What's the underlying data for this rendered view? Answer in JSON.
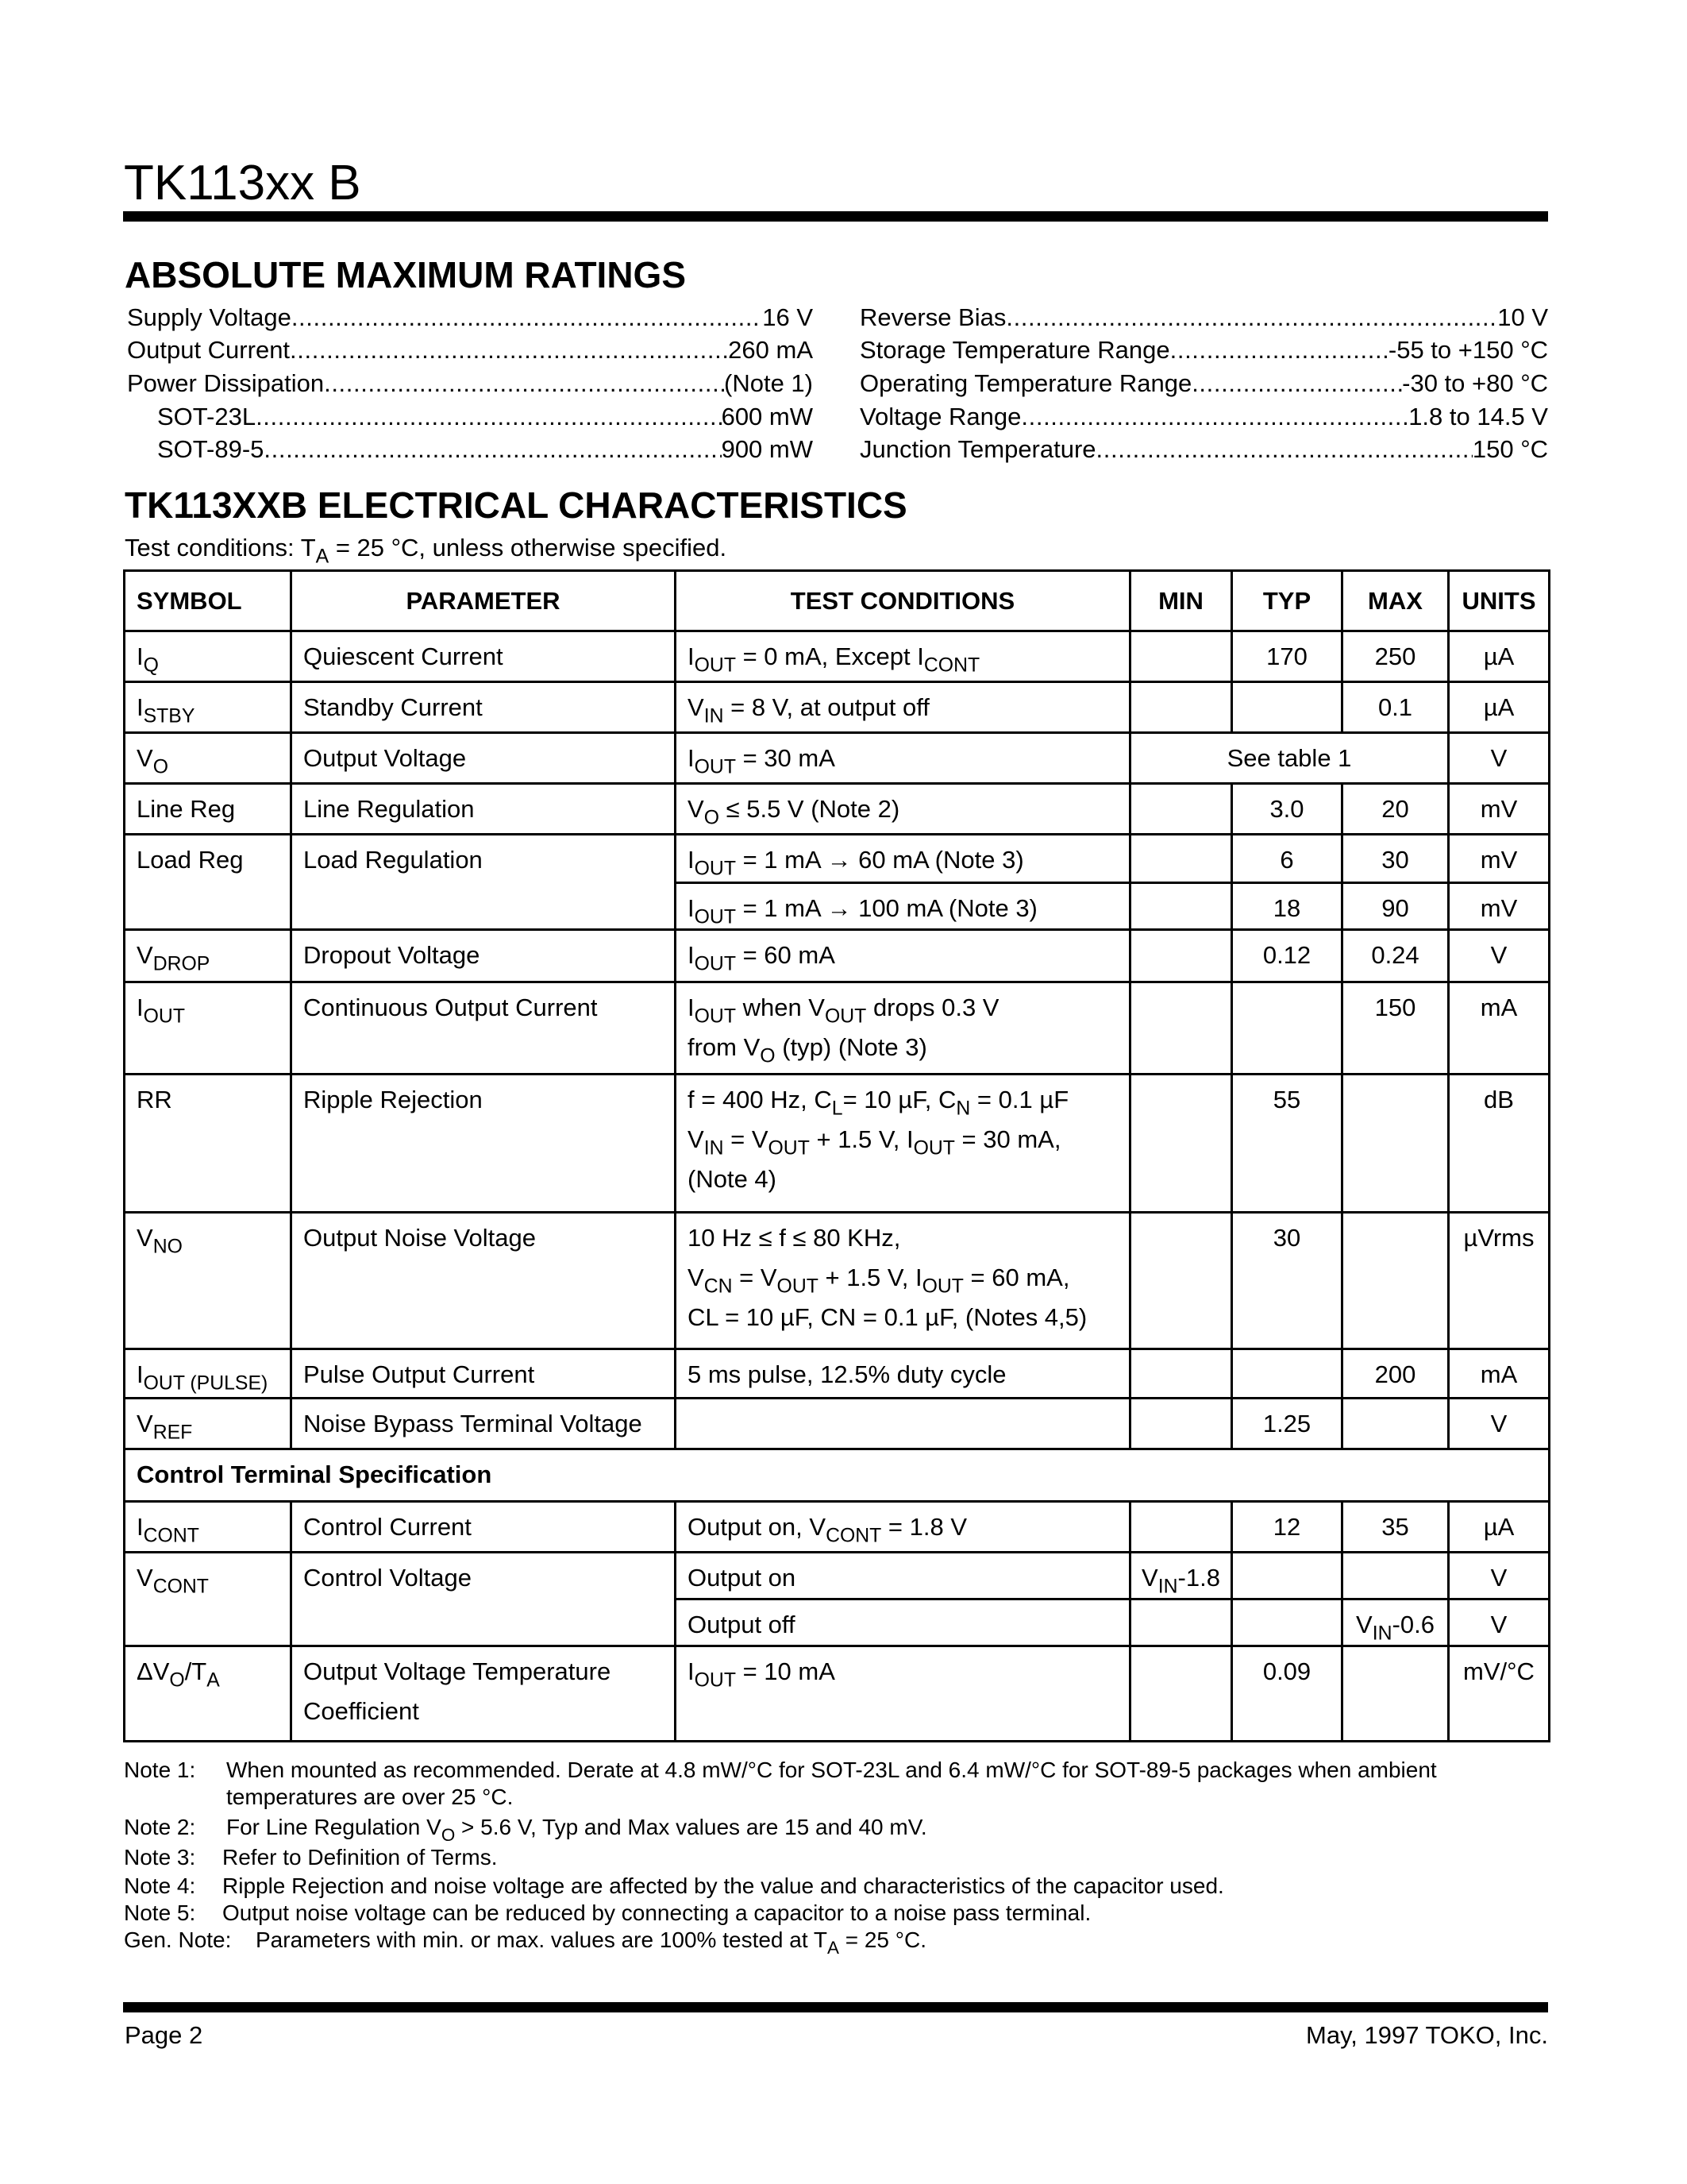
{
  "header": {
    "title": "TK113xx B"
  },
  "absolute_max": {
    "title": "ABSOLUTE MAXIMUM RATINGS",
    "left": [
      {
        "label": "Supply Voltage",
        "value": "16 V"
      },
      {
        "label": "Output Current",
        "value": "260 mA"
      },
      {
        "label": "Power Dissipation",
        "value": "(Note 1)"
      },
      {
        "label": "SOT-23L",
        "value": "600 mW"
      },
      {
        "label": "SOT-89-5",
        "value": "900 mW"
      }
    ],
    "right": [
      {
        "label": "Reverse Bias",
        "value": "10 V"
      },
      {
        "label": "Storage Temperature Range",
        "value": "-55 to +150 °C"
      },
      {
        "label": "Operating Temperature Range",
        "value": "-30 to +80 °C"
      },
      {
        "label": "Voltage Range",
        "value": "1.8 to 14.5 V"
      },
      {
        "label": "Junction Temperature",
        "value": "150 °C"
      }
    ]
  },
  "electrical": {
    "title": "TK113XXB ELECTRICAL CHARACTERISTICS",
    "test_conditions": "Test conditions: T_{A} = 25 °C, unless otherwise specified.",
    "columns": [
      "SYMBOL",
      "PARAMETER",
      "TEST CONDITIONS",
      "MIN",
      "TYP",
      "MAX",
      "UNITS"
    ],
    "rows": [
      {
        "symbol": "I_{Q}",
        "parameter": [
          "Quiescent Current"
        ],
        "lines": [
          {
            "cond": [
              "I_{OUT} = 0 mA, Except I_{CONT}"
            ],
            "min": "",
            "typ": "170",
            "max": "250",
            "units": "µA"
          }
        ]
      },
      {
        "symbol": "I_{STBY}",
        "parameter": [
          "Standby Current"
        ],
        "lines": [
          {
            "cond": [
              "V_{IN} = 8 V, at output off"
            ],
            "min": "",
            "typ": "",
            "max": "0.1",
            "units": "µA"
          }
        ]
      },
      {
        "symbol": "V_{O}",
        "parameter": [
          "Output Voltage"
        ],
        "lines": [
          {
            "cond": [
              "I_{OUT} = 30 mA"
            ],
            "merged": "See table 1",
            "units": "V"
          }
        ]
      },
      {
        "symbol": "Line Reg",
        "parameter": [
          "Line Regulation"
        ],
        "lines": [
          {
            "cond": [
              "V_{O} ≤ 5.5 V (Note 2)"
            ],
            "min": "",
            "typ": "3.0",
            "max": "20",
            "units": "mV"
          }
        ]
      },
      {
        "symbol": "Load Reg",
        "parameter": [
          "Load Regulation"
        ],
        "lines": [
          {
            "cond": [
              "I_{OUT} = 1 mA → 60 mA (Note 3)"
            ],
            "min": "",
            "typ": "6",
            "max": "30",
            "units": "mV"
          },
          {
            "cond": [
              "I_{OUT} = 1 mA → 100 mA (Note 3)"
            ],
            "min": "",
            "typ": "18",
            "max": "90",
            "units": "mV"
          }
        ]
      },
      {
        "symbol": "V_{DROP}",
        "parameter": [
          "Dropout Voltage"
        ],
        "lines": [
          {
            "cond": [
              "I_{OUT} = 60 mA"
            ],
            "min": "",
            "typ": "0.12",
            "max": "0.24",
            "units": "V"
          }
        ]
      },
      {
        "symbol": "I_{OUT}",
        "parameter": [
          "Continuous Output Current"
        ],
        "lines": [
          {
            "cond": [
              "I_{OUT} when V_{OUT} drops 0.3 V",
              "from V_{O} (typ) (Note 3)"
            ],
            "min": "",
            "typ": "",
            "max": "150",
            "units": "mA"
          }
        ]
      },
      {
        "symbol": "RR",
        "parameter": [
          "Ripple Rejection"
        ],
        "lines": [
          {
            "cond": [
              "f = 400 Hz, C_{L}= 10 µF, C_{N} = 0.1 µF",
              "V_{IN} = V_{OUT} + 1.5 V, I_{OUT} = 30 mA,",
              "(Note 4)"
            ],
            "min": "",
            "typ": "55",
            "max": "",
            "units": "dB"
          }
        ]
      },
      {
        "symbol": "V_{NO}",
        "parameter": [
          "Output Noise Voltage"
        ],
        "lines": [
          {
            "cond": [
              "10 Hz ≤ f ≤ 80 KHz,",
              "V_{CN} = V_{OUT} + 1.5 V, I_{OUT} = 60 mA,",
              "CL = 10 µF, CN = 0.1 µF, (Notes 4,5)"
            ],
            "min": "",
            "typ": "30",
            "max": "",
            "units": "µVrms"
          }
        ]
      },
      {
        "symbol": "I_{OUT (PULSE)}",
        "parameter": [
          "Pulse Output Current"
        ],
        "lines": [
          {
            "cond": [
              "5 ms pulse, 12.5% duty cycle"
            ],
            "min": "",
            "typ": "",
            "max": "200",
            "units": "mA"
          }
        ]
      },
      {
        "symbol": "V_{REF}",
        "parameter": [
          "Noise Bypass Terminal Voltage"
        ],
        "lines": [
          {
            "cond": [
              ""
            ],
            "min": "",
            "typ": "1.25",
            "max": "",
            "units": "V"
          }
        ]
      },
      {
        "section": "Control Terminal Specification"
      },
      {
        "symbol": "I_{CONT}",
        "parameter": [
          "Control Current"
        ],
        "lines": [
          {
            "cond": [
              "Output on, V_{CONT} = 1.8 V"
            ],
            "min": "",
            "typ": "12",
            "max": "35",
            "units": "µA"
          }
        ]
      },
      {
        "symbol": "V_{CONT}",
        "parameter": [
          "Control Voltage"
        ],
        "lines": [
          {
            "cond": [
              "Output on"
            ],
            "min": "V_{IN}-1.8",
            "typ": "",
            "max": "",
            "units": "V"
          },
          {
            "cond": [
              "Output off"
            ],
            "min": "",
            "typ": "",
            "max": "V_{IN}-0.6",
            "units": "V"
          }
        ]
      },
      {
        "symbol": "ΔV_{O}/T_{A}",
        "parameter": [
          "Output Voltage Temperature",
          "Coefficient"
        ],
        "lines": [
          {
            "cond": [
              "I_{OUT} = 10 mA"
            ],
            "min": "",
            "typ": "0.09",
            "max": "",
            "units": "mV/°C"
          }
        ]
      }
    ]
  },
  "notes": [
    {
      "label": "Note 1:",
      "text": [
        "When mounted as recommended. Derate at  4.8 mW/°C for SOT-23L and 6.4 mW/°C for SOT-89-5 packages when ambient",
        "temperatures are over 25 °C."
      ]
    },
    {
      "label": "Note 2:",
      "text": [
        "For Line Regulation V_{O} > 5.6 V, Typ and Max values are 15 and 40 mV."
      ]
    },
    {
      "label": "Note 3:",
      "text": [
        "Refer to Definition of Terms."
      ]
    },
    {
      "label": "Note 4:",
      "text": [
        "Ripple Rejection and noise voltage are affected by the value and characteristics of the capacitor used."
      ]
    },
    {
      "label": "Note 5:",
      "text": [
        "Output noise voltage can be reduced by connecting a capacitor to a noise pass terminal."
      ]
    },
    {
      "label": "Gen. Note:",
      "text": [
        "Parameters with min. or max. values are 100% tested at T_{A} = 25 °C."
      ]
    }
  ],
  "footer": {
    "page": "Page 2",
    "right": "May, 1997 TOKO, Inc."
  }
}
